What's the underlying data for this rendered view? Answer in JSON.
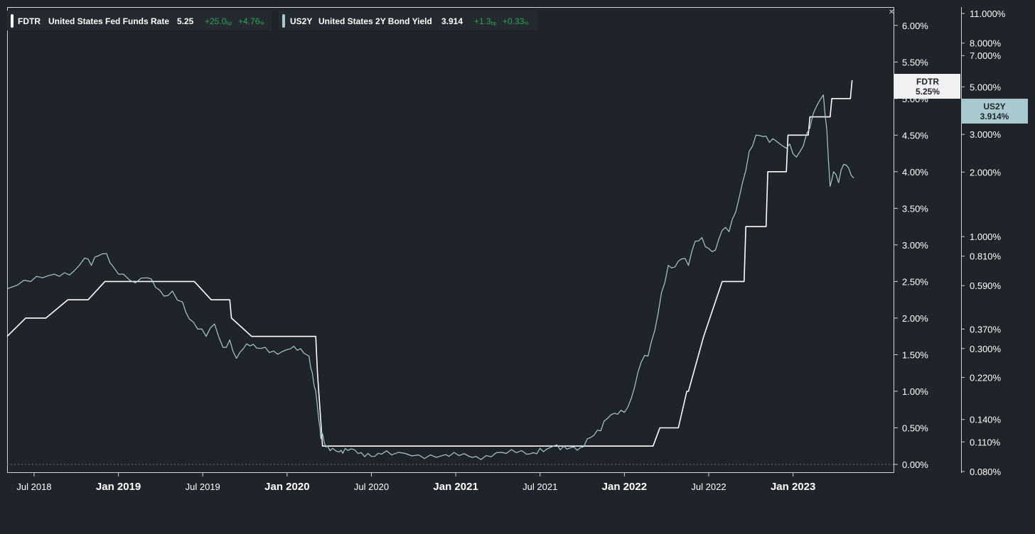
{
  "chart_data": {
    "type": "line",
    "legend": [
      {
        "ticker": "FDTR",
        "name": "United States Fed Funds Rate",
        "last": "5.25",
        "chg_bp": "+25.0",
        "chg_bp_unit": "bp",
        "chg_pct": "+4.76",
        "chg_pct_unit": "%",
        "color": "#ffffff"
      },
      {
        "ticker": "US2Y",
        "name": "United States 2Y Bond Yield",
        "last": "3.914",
        "chg_bp": "+1.3",
        "chg_bp_unit": "bp",
        "chg_pct": "+0.33",
        "chg_pct_unit": "%",
        "color": "#a9c9cf"
      }
    ],
    "x_ticks": [
      {
        "label": "Jul 2018",
        "t": 2018.5,
        "major": false
      },
      {
        "label": "Jan 2019",
        "t": 2019.0,
        "major": true
      },
      {
        "label": "Jul 2019",
        "t": 2019.5,
        "major": false
      },
      {
        "label": "Jan 2020",
        "t": 2020.0,
        "major": true
      },
      {
        "label": "Jul 2020",
        "t": 2020.5,
        "major": false
      },
      {
        "label": "Jan 2021",
        "t": 2021.0,
        "major": true
      },
      {
        "label": "Jul 2021",
        "t": 2021.5,
        "major": false
      },
      {
        "label": "Jan 2022",
        "t": 2022.0,
        "major": true
      },
      {
        "label": "Jul 2022",
        "t": 2022.5,
        "major": false
      },
      {
        "label": "Jan 2023",
        "t": 2023.0,
        "major": true
      }
    ],
    "x_range": [
      2018.34,
      2023.6
    ],
    "y_left": {
      "range": [
        0,
        6.25
      ],
      "ticks": [
        "0.00%",
        "0.50%",
        "1.00%",
        "1.50%",
        "2.00%",
        "2.50%",
        "3.00%",
        "3.50%",
        "4.00%",
        "4.50%",
        "5.00%",
        "5.50%",
        "6.00%"
      ],
      "tick_values": [
        0,
        0.5,
        1.0,
        1.5,
        2.0,
        2.5,
        3.0,
        3.5,
        4.0,
        4.5,
        5.0,
        5.5,
        6.0
      ]
    },
    "y_right": {
      "scale": "log",
      "ticks": [
        "11.000%",
        "8.000%",
        "7.000%",
        "5.000%",
        "3.000%",
        "2.000%",
        "1.000%",
        "0.810%",
        "0.590%",
        "0.370%",
        "0.300%",
        "0.220%",
        "0.140%",
        "0.110%",
        "0.080%"
      ]
    },
    "series": [
      {
        "name": "FDTR",
        "color": "#ffffff",
        "x": [
          2018.34,
          2018.45,
          2018.46,
          2018.57,
          2018.7,
          2018.71,
          2018.82,
          2018.92,
          2018.93,
          2019.25,
          2019.45,
          2019.55,
          2019.56,
          2019.66,
          2019.67,
          2019.79,
          2019.8,
          2020.17,
          2020.18,
          2020.21,
          2020.22,
          2021.85,
          2022.17,
          2022.21,
          2022.32,
          2022.37,
          2022.38,
          2022.47,
          2022.58,
          2022.59,
          2022.71,
          2022.72,
          2022.84,
          2022.85,
          2022.96,
          2022.97,
          2023.09,
          2023.1,
          2023.22,
          2023.23,
          2023.34,
          2023.35
        ],
        "values": [
          1.75,
          2.0,
          2.0,
          2.0,
          2.25,
          2.25,
          2.25,
          2.5,
          2.5,
          2.5,
          2.5,
          2.25,
          2.25,
          2.25,
          2.0,
          1.75,
          1.75,
          1.75,
          1.25,
          0.25,
          0.25,
          0.25,
          0.25,
          0.5,
          0.5,
          1.0,
          1.0,
          1.75,
          2.5,
          2.5,
          2.5,
          3.25,
          3.25,
          4.0,
          4.0,
          4.5,
          4.5,
          4.75,
          4.75,
          5.0,
          5.0,
          5.25
        ]
      },
      {
        "name": "US2Y",
        "color": "#a9c9cf",
        "x": [
          2018.34,
          2018.4,
          2018.48,
          2018.55,
          2018.62,
          2018.68,
          2018.74,
          2018.8,
          2018.84,
          2018.88,
          2018.93,
          2018.97,
          2019.03,
          2019.1,
          2019.17,
          2019.22,
          2019.27,
          2019.32,
          2019.38,
          2019.42,
          2019.47,
          2019.52,
          2019.57,
          2019.62,
          2019.66,
          2019.7,
          2019.74,
          2019.78,
          2019.82,
          2019.87,
          2019.92,
          2019.97,
          2020.02,
          2020.06,
          2020.1,
          2020.13,
          2020.15,
          2020.17,
          2020.19,
          2020.2,
          2020.21,
          2020.22,
          2020.24,
          2020.27,
          2020.31,
          2020.33,
          2020.36,
          2020.4,
          2020.44,
          2020.48,
          2020.52,
          2020.56,
          2020.62,
          2020.7,
          2020.78,
          2020.85,
          2020.92,
          2020.96,
          2021.02,
          2021.08,
          2021.12,
          2021.18,
          2021.24,
          2021.3,
          2021.36,
          2021.42,
          2021.46,
          2021.5,
          2021.54,
          2021.58,
          2021.62,
          2021.66,
          2021.7,
          2021.74,
          2021.78,
          2021.82,
          2021.86,
          2021.9,
          2021.94,
          2021.98,
          2022.02,
          2022.06,
          2022.1,
          2022.14,
          2022.18,
          2022.22,
          2022.26,
          2022.3,
          2022.34,
          2022.38,
          2022.42,
          2022.46,
          2022.5,
          2022.54,
          2022.58,
          2022.62,
          2022.66,
          2022.7,
          2022.74,
          2022.78,
          2022.82,
          2022.86,
          2022.9,
          2022.94,
          2022.98,
          2023.02,
          2023.06,
          2023.1,
          2023.14,
          2023.18,
          2023.2,
          2023.22,
          2023.24,
          2023.27,
          2023.3,
          2023.33,
          2023.36
        ],
        "values": [
          2.4,
          2.45,
          2.5,
          2.55,
          2.6,
          2.62,
          2.65,
          2.82,
          2.72,
          2.85,
          2.88,
          2.7,
          2.6,
          2.48,
          2.55,
          2.42,
          2.3,
          2.37,
          2.22,
          1.99,
          1.85,
          1.75,
          1.92,
          1.6,
          1.7,
          1.45,
          1.58,
          1.62,
          1.59,
          1.6,
          1.55,
          1.54,
          1.58,
          1.56,
          1.52,
          1.48,
          1.25,
          1.0,
          0.57,
          0.35,
          0.42,
          0.3,
          0.25,
          0.22,
          0.17,
          0.15,
          0.19,
          0.2,
          0.16,
          0.15,
          0.11,
          0.14,
          0.13,
          0.15,
          0.13,
          0.13,
          0.12,
          0.11,
          0.12,
          0.11,
          0.11,
          0.12,
          0.16,
          0.15,
          0.16,
          0.14,
          0.16,
          0.22,
          0.21,
          0.25,
          0.2,
          0.21,
          0.24,
          0.23,
          0.35,
          0.4,
          0.46,
          0.63,
          0.7,
          0.74,
          0.78,
          1.05,
          1.4,
          1.48,
          1.83,
          2.35,
          2.72,
          2.7,
          2.81,
          2.72,
          3.05,
          3.1,
          2.95,
          2.93,
          3.2,
          3.18,
          3.45,
          3.85,
          4.28,
          4.5,
          4.48,
          4.4,
          4.42,
          4.35,
          4.38,
          4.2,
          4.35,
          4.6,
          4.9,
          5.05,
          4.58,
          3.8,
          4.0,
          3.85,
          4.1,
          4.05,
          3.914
        ]
      }
    ]
  }
}
